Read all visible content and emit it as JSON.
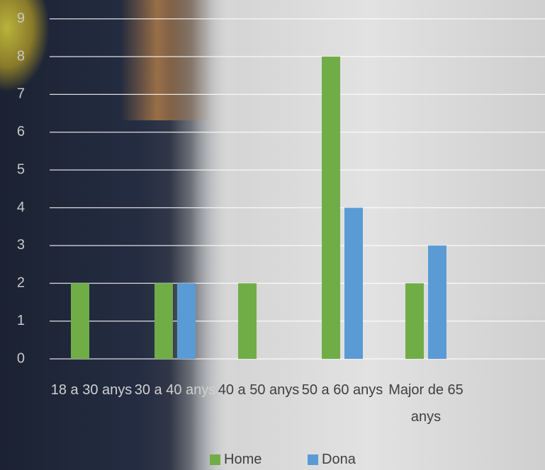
{
  "chart_data": {
    "type": "bar",
    "categories": [
      "18  a 30 anys",
      "30 a 40 anys",
      "40 a 50 anys",
      "50 a  60 anys",
      "Major de 65 anys"
    ],
    "series": [
      {
        "name": "Home",
        "color": "#70ad47",
        "values": [
          2,
          2,
          2,
          8,
          2
        ]
      },
      {
        "name": "Dona",
        "color": "#5b9bd5",
        "values": [
          0,
          2,
          0,
          4,
          3
        ]
      }
    ],
    "ylim": [
      0,
      9
    ],
    "yticks": [
      0,
      1,
      2,
      3,
      4,
      5,
      6,
      7,
      8,
      9
    ],
    "grid": true,
    "legend": "bottom"
  }
}
